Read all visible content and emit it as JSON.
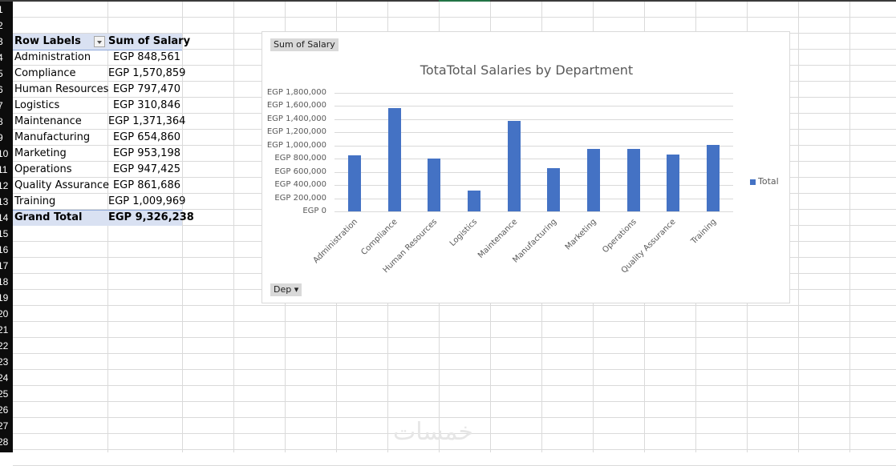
{
  "sheet": {
    "row_numbers": [
      "1",
      "2",
      "3",
      "4",
      "5",
      "6",
      "7",
      "8",
      "9",
      "10",
      "11",
      "12",
      "13",
      "14",
      "15",
      "16",
      "17",
      "18",
      "19",
      "20",
      "21",
      "22",
      "23",
      "24",
      "25",
      "26",
      "27",
      "28"
    ]
  },
  "pivot": {
    "header_label": "Row Labels",
    "header_value": "Sum of Salary",
    "rows": [
      {
        "label": "Administration",
        "value": "EGP 848,561"
      },
      {
        "label": "Compliance",
        "value": "EGP 1,570,859"
      },
      {
        "label": "Human Resources",
        "value": "EGP 797,470"
      },
      {
        "label": "Logistics",
        "value": "EGP 310,846"
      },
      {
        "label": "Maintenance",
        "value": "EGP 1,371,364"
      },
      {
        "label": "Manufacturing",
        "value": "EGP 654,860"
      },
      {
        "label": "Marketing",
        "value": "EGP 953,198"
      },
      {
        "label": "Operations",
        "value": "EGP 947,425"
      },
      {
        "label": "Quality Assurance",
        "value": "EGP 861,686"
      },
      {
        "label": "Training",
        "value": "EGP 1,009,969"
      }
    ],
    "total_label": "Grand Total",
    "total_value": "EGP 9,326,238"
  },
  "chart": {
    "value_field_button": "Sum of Salary",
    "axis_field_button": "Dep ▾",
    "title": "TotaTotal Salaries by Department",
    "legend": "Total",
    "y_ticks": [
      "EGP 1,800,000",
      "EGP 1,600,000",
      "EGP 1,400,000",
      "EGP 1,200,000",
      "EGP 1,000,000",
      "EGP 800,000",
      "EGP 600,000",
      "EGP 400,000",
      "EGP 200,000",
      "EGP 0"
    ],
    "bar_color": "#4472c4"
  },
  "chart_data": {
    "type": "bar",
    "title": "TotaTotal Salaries by Department",
    "categories": [
      "Administration",
      "Compliance",
      "Human Resources",
      "Logistics",
      "Maintenance",
      "Manufacturing",
      "Marketing",
      "Operations",
      "Quality Assurance",
      "Training"
    ],
    "series": [
      {
        "name": "Total",
        "values": [
          848561,
          1570859,
          797470,
          310846,
          1371364,
          654860,
          953198,
          947425,
          861686,
          1009969
        ]
      }
    ],
    "xlabel": "",
    "ylabel": "",
    "ylim": [
      0,
      1800000
    ],
    "y_tick_step": 200000,
    "grid": true,
    "legend_position": "right"
  },
  "watermark": "خمسات"
}
